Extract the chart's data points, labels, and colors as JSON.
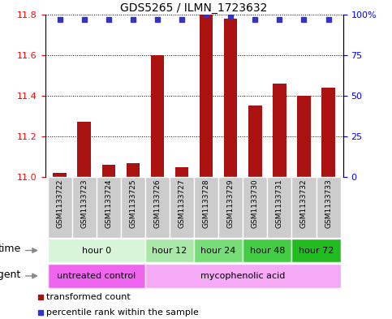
{
  "title": "GDS5265 / ILMN_1723632",
  "samples": [
    "GSM1133722",
    "GSM1133723",
    "GSM1133724",
    "GSM1133725",
    "GSM1133726",
    "GSM1133727",
    "GSM1133728",
    "GSM1133729",
    "GSM1133730",
    "GSM1133731",
    "GSM1133732",
    "GSM1133733"
  ],
  "bar_values": [
    11.02,
    11.27,
    11.06,
    11.07,
    11.6,
    11.05,
    11.8,
    11.78,
    11.35,
    11.46,
    11.4,
    11.44
  ],
  "bar_baseline": 11.0,
  "percentile_values": [
    97,
    97,
    97,
    97,
    97,
    97,
    100,
    99,
    97,
    97,
    97,
    97
  ],
  "ylim_left": [
    11.0,
    11.8
  ],
  "ylim_right": [
    0,
    100
  ],
  "yticks_left": [
    11.0,
    11.2,
    11.4,
    11.6,
    11.8
  ],
  "yticks_right": [
    0,
    25,
    50,
    75,
    100
  ],
  "bar_color": "#aa1111",
  "dot_color": "#3333cc",
  "time_groups": [
    {
      "label": "hour 0",
      "start": 0,
      "end": 4,
      "color": "#d9f5d9"
    },
    {
      "label": "hour 12",
      "start": 4,
      "end": 6,
      "color": "#aae8aa"
    },
    {
      "label": "hour 24",
      "start": 6,
      "end": 8,
      "color": "#77dd77"
    },
    {
      "label": "hour 48",
      "start": 8,
      "end": 10,
      "color": "#44cc44"
    },
    {
      "label": "hour 72",
      "start": 10,
      "end": 12,
      "color": "#22bb22"
    }
  ],
  "agent_groups": [
    {
      "label": "untreated control",
      "start": 0,
      "end": 4,
      "color": "#ee66ee"
    },
    {
      "label": "mycophenolic acid",
      "start": 4,
      "end": 12,
      "color": "#f5aaf5"
    }
  ],
  "legend_items": [
    {
      "label": "transformed count",
      "color": "#aa1111",
      "marker": "s"
    },
    {
      "label": "percentile rank within the sample",
      "color": "#3333cc",
      "marker": "s"
    }
  ],
  "row_label_time": "time",
  "row_label_agent": "agent",
  "sample_bg_color": "#cccccc",
  "fig_bg_color": "#ffffff"
}
